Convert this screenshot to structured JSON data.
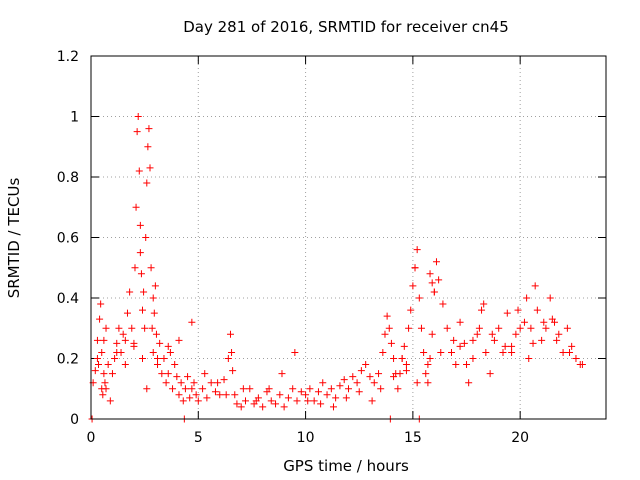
{
  "chart_data": {
    "type": "scatter",
    "title": "Day 281 of 2016, SRMTID for receiver cn45",
    "xlabel": "GPS time / hours",
    "ylabel": "SRMTID / TECUs",
    "xlim": [
      0,
      24
    ],
    "ylim": [
      0,
      1.2
    ],
    "x_ticks": [
      0,
      5,
      10,
      15,
      20
    ],
    "y_ticks": [
      0,
      0.2,
      0.4,
      0.6,
      0.8,
      1.0,
      1.2
    ],
    "x_tick_labels": [
      "0",
      "5",
      "10",
      "15",
      "20"
    ],
    "y_tick_labels": [
      "0",
      "0.2",
      "0.4",
      "0.6",
      "0.8",
      "1",
      "1.2"
    ],
    "grid": true,
    "marker": "+",
    "color": "#ff0000",
    "series": [
      {
        "name": "SRMTID",
        "x": [
          0.1,
          0.2,
          0.3,
          0.35,
          0.4,
          0.45,
          0.5,
          0.5,
          0.55,
          0.6,
          0.6,
          0.65,
          0.7,
          0.8,
          0.9,
          1.0,
          1.1,
          1.2,
          1.3,
          1.4,
          1.5,
          1.6,
          1.7,
          1.8,
          1.9,
          2.0,
          2.05,
          2.1,
          2.15,
          2.2,
          2.25,
          2.3,
          2.3,
          2.35,
          2.4,
          2.4,
          2.45,
          2.5,
          2.55,
          2.6,
          2.65,
          2.7,
          2.75,
          2.8,
          2.85,
          2.9,
          2.9,
          2.95,
          3.0,
          3.05,
          3.1,
          3.2,
          3.3,
          3.4,
          3.5,
          3.6,
          3.7,
          3.8,
          3.9,
          4.0,
          4.1,
          4.2,
          4.3,
          4.4,
          4.5,
          4.6,
          4.7,
          4.8,
          4.9,
          5.0,
          5.2,
          5.4,
          5.6,
          5.8,
          6.0,
          6.2,
          6.4,
          6.5,
          6.55,
          6.6,
          6.7,
          6.8,
          7.0,
          7.2,
          7.4,
          7.6,
          7.8,
          8.0,
          8.2,
          8.4,
          8.6,
          8.8,
          9.0,
          9.2,
          9.4,
          9.6,
          9.8,
          10.0,
          10.2,
          10.4,
          10.6,
          10.8,
          11.0,
          11.2,
          11.4,
          11.6,
          11.8,
          12.0,
          12.2,
          12.4,
          12.6,
          12.8,
          13.0,
          13.2,
          13.4,
          13.6,
          13.7,
          13.8,
          13.9,
          14.0,
          14.1,
          14.2,
          14.3,
          14.4,
          14.5,
          14.6,
          14.7,
          14.8,
          14.9,
          15.0,
          15.1,
          15.2,
          15.3,
          15.4,
          15.5,
          15.6,
          15.7,
          15.8,
          15.9,
          16.0,
          16.1,
          16.2,
          16.4,
          16.6,
          16.8,
          17.0,
          17.2,
          17.4,
          17.6,
          17.8,
          18.0,
          18.2,
          18.4,
          18.6,
          18.8,
          19.0,
          19.2,
          19.4,
          19.6,
          19.8,
          20.0,
          20.2,
          20.4,
          20.6,
          20.8,
          21.0,
          21.2,
          21.4,
          21.6,
          21.8,
          22.0,
          22.2,
          22.4,
          22.6,
          22.8,
          0.3,
          0.7,
          1.2,
          1.6,
          2.0,
          2.6,
          3.1,
          3.6,
          4.1,
          4.7,
          5.3,
          5.9,
          6.3,
          7.1,
          7.7,
          8.3,
          8.9,
          9.5,
          10.1,
          10.7,
          11.3,
          11.9,
          12.5,
          13.1,
          13.5,
          14.1,
          14.7,
          15.2,
          15.7,
          16.3,
          16.9,
          17.5,
          18.1,
          18.7,
          19.3,
          19.9,
          20.5,
          21.1,
          21.7,
          22.3,
          22.9,
          14.5,
          15.1,
          15.8,
          15.9,
          16.0,
          17.2,
          17.8,
          18.3,
          19.6,
          20.3,
          20.7,
          21.5,
          0.05,
          4.35,
          13.95,
          15.3
        ],
        "y": [
          0.12,
          0.16,
          0.2,
          0.18,
          0.33,
          0.38,
          0.1,
          0.22,
          0.08,
          0.15,
          0.26,
          0.12,
          0.1,
          0.18,
          0.06,
          0.15,
          0.2,
          0.25,
          0.3,
          0.22,
          0.28,
          0.18,
          0.35,
          0.42,
          0.3,
          0.25,
          0.5,
          0.7,
          0.95,
          1.0,
          0.82,
          0.64,
          0.55,
          0.48,
          0.36,
          0.2,
          0.42,
          0.3,
          0.6,
          0.78,
          0.9,
          0.96,
          0.83,
          0.5,
          0.3,
          0.22,
          0.4,
          0.35,
          0.44,
          0.28,
          0.18,
          0.25,
          0.15,
          0.2,
          0.12,
          0.15,
          0.22,
          0.1,
          0.18,
          0.14,
          0.08,
          0.12,
          0.06,
          0.1,
          0.14,
          0.07,
          0.1,
          0.12,
          0.08,
          0.06,
          0.1,
          0.07,
          0.12,
          0.09,
          0.08,
          0.13,
          0.2,
          0.28,
          0.22,
          0.16,
          0.08,
          0.05,
          0.04,
          0.06,
          0.1,
          0.05,
          0.07,
          0.04,
          0.09,
          0.06,
          0.05,
          0.08,
          0.04,
          0.07,
          0.1,
          0.06,
          0.09,
          0.08,
          0.1,
          0.06,
          0.09,
          0.12,
          0.08,
          0.1,
          0.07,
          0.11,
          0.13,
          0.1,
          0.14,
          0.12,
          0.16,
          0.18,
          0.14,
          0.12,
          0.15,
          0.22,
          0.28,
          0.34,
          0.3,
          0.25,
          0.2,
          0.15,
          0.1,
          0.15,
          0.2,
          0.24,
          0.18,
          0.3,
          0.36,
          0.44,
          0.5,
          0.56,
          0.4,
          0.3,
          0.22,
          0.15,
          0.12,
          0.2,
          0.28,
          0.42,
          0.52,
          0.46,
          0.38,
          0.3,
          0.22,
          0.18,
          0.32,
          0.25,
          0.12,
          0.2,
          0.28,
          0.36,
          0.22,
          0.15,
          0.26,
          0.3,
          0.22,
          0.35,
          0.24,
          0.28,
          0.3,
          0.32,
          0.2,
          0.25,
          0.36,
          0.26,
          0.3,
          0.4,
          0.32,
          0.28,
          0.22,
          0.3,
          0.24,
          0.2,
          0.18,
          0.26,
          0.3,
          0.22,
          0.26,
          0.24,
          0.1,
          0.2,
          0.24,
          0.26,
          0.32,
          0.15,
          0.12,
          0.08,
          0.1,
          0.06,
          0.1,
          0.15,
          0.22,
          0.06,
          0.05,
          0.04,
          0.07,
          0.09,
          0.06,
          0.1,
          0.14,
          0.16,
          0.12,
          0.18,
          0.22,
          0.26,
          0.18,
          0.3,
          0.28,
          0.24,
          0.36,
          0.3,
          0.32,
          0.26,
          0.22,
          0.18,
          0.2,
          0.5,
          0.48,
          0.45,
          0.42,
          0.24,
          0.26,
          0.38,
          0.22,
          0.4,
          0.44,
          0.33,
          0.0,
          0.0,
          0.0,
          0.0
        ]
      }
    ]
  }
}
